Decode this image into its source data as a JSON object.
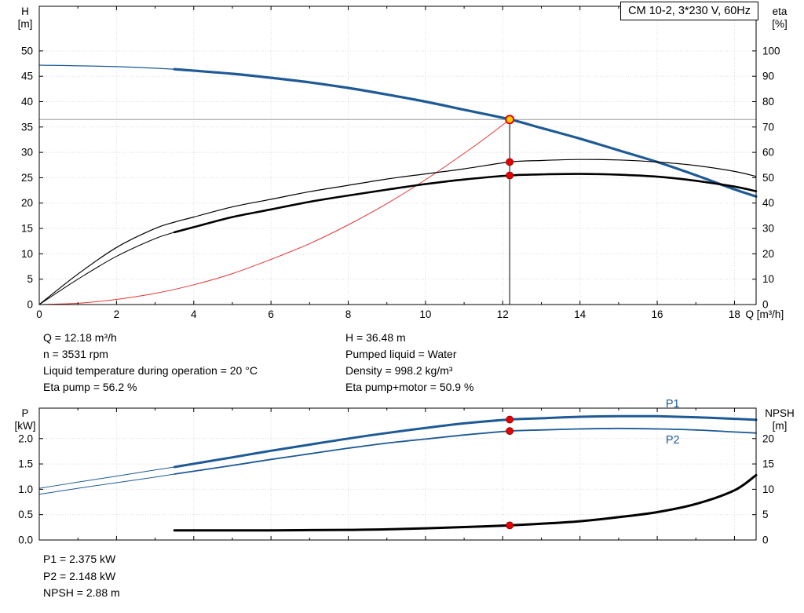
{
  "title_box": "CM 10-2, 3*230 V, 60Hz",
  "operating_point": {
    "left": [
      "Q = 12.18 m³/h",
      "n = 3531 rpm",
      "Liquid temperature during operation = 20 °C",
      "Eta pump = 56.2 %"
    ],
    "right": [
      "H = 36.48 m",
      "Pumped liquid = Water",
      "Density = 998.2 kg/m³",
      "Eta pump+motor = 50.9 %"
    ]
  },
  "power_results": [
    "P1 = 2.375 kW",
    "P2 = 2.148 kW",
    "NPSH = 2.88 m"
  ],
  "colors": {
    "blue": "#1e5a96",
    "black": "#000000",
    "red": "#e53535",
    "dot_red": "#e60000",
    "duty_fill": "#ffd200",
    "grid": "#dcdcdc",
    "ref_gray": "#9c9c9c"
  },
  "chart_data": [
    {
      "type": "line",
      "name": "qh-eta-chart",
      "x_axis": {
        "label": "Q [m³/h]",
        "min": 0,
        "max": 18.56,
        "ticks": [
          0,
          2,
          4,
          6,
          8,
          10,
          12,
          14,
          16,
          18
        ],
        "minor_step": 1,
        "show_labels": true
      },
      "y_left": {
        "name": "H",
        "unit": "[m]",
        "min": 0,
        "max": 58.8,
        "ticks": [
          0,
          5,
          10,
          15,
          20,
          25,
          30,
          35,
          40,
          45,
          50
        ],
        "decimals": 0
      },
      "y_right": {
        "name": "eta",
        "unit": "[%]",
        "min": 0,
        "max": 117.6,
        "ticks": [
          0,
          10,
          20,
          30,
          40,
          50,
          60,
          70,
          80,
          90,
          100
        ],
        "decimals": 0
      },
      "series": [
        {
          "name": "head-curve",
          "axis": "left",
          "color": "blue",
          "thin": 1.2,
          "thick": 3.2,
          "split_q": 3.5,
          "points": [
            [
              0,
              47.2
            ],
            [
              2,
              46.9
            ],
            [
              3.5,
              46.4
            ],
            [
              5,
              45.5
            ],
            [
              6,
              44.7
            ],
            [
              7,
              43.8
            ],
            [
              8,
              42.7
            ],
            [
              9,
              41.4
            ],
            [
              10,
              40.0
            ],
            [
              11,
              38.4
            ],
            [
              12.18,
              36.5
            ],
            [
              13,
              34.8
            ],
            [
              14,
              32.7
            ],
            [
              15,
              30.4
            ],
            [
              16,
              28.1
            ],
            [
              17,
              25.5
            ],
            [
              18,
              22.7
            ],
            [
              18.56,
              21.3
            ]
          ]
        },
        {
          "name": "system-curve",
          "axis": "left",
          "color": "red",
          "thin": 1,
          "thick": 1,
          "split_q": null,
          "points": [
            [
              0,
              0
            ],
            [
              1,
              0.25
            ],
            [
              2,
              1.0
            ],
            [
              3,
              2.2
            ],
            [
              4,
              3.9
            ],
            [
              5,
              6.1
            ],
            [
              6,
              8.9
            ],
            [
              7,
              12.0
            ],
            [
              8,
              15.7
            ],
            [
              9,
              19.9
            ],
            [
              10,
              24.6
            ],
            [
              11,
              29.8
            ],
            [
              11.6,
              33.1
            ],
            [
              12.18,
              36.48
            ]
          ]
        },
        {
          "name": "eta-pump-curve",
          "axis": "right",
          "color": "black",
          "thin": 1.2,
          "thick": 1.2,
          "split_q": null,
          "points": [
            [
              0,
              0
            ],
            [
              1,
              12
            ],
            [
              2,
              22.5
            ],
            [
              3,
              30
            ],
            [
              3.5,
              32.5
            ],
            [
              4,
              34.5
            ],
            [
              5,
              38.5
            ],
            [
              6,
              41.5
            ],
            [
              7,
              44.5
            ],
            [
              8,
              47
            ],
            [
              9,
              49.5
            ],
            [
              10,
              51.5
            ],
            [
              11,
              53.5
            ],
            [
              12.18,
              56.2
            ],
            [
              13,
              56.8
            ],
            [
              14,
              57.2
            ],
            [
              15,
              57.0
            ],
            [
              16,
              56.2
            ],
            [
              17,
              54.8
            ],
            [
              18,
              52.5
            ],
            [
              18.56,
              50.5
            ]
          ]
        },
        {
          "name": "eta-pump-motor-curve",
          "axis": "right",
          "color": "black",
          "thin": 1,
          "thick": 2.6,
          "split_q": 3.5,
          "points": [
            [
              0,
              0
            ],
            [
              1,
              10
            ],
            [
              2,
              19
            ],
            [
              3,
              26
            ],
            [
              3.5,
              28.5
            ],
            [
              4,
              30.5
            ],
            [
              5,
              34.5
            ],
            [
              6,
              37.5
            ],
            [
              7,
              40.5
            ],
            [
              8,
              43
            ],
            [
              9,
              45.3
            ],
            [
              10,
              47.5
            ],
            [
              11,
              49.3
            ],
            [
              12.18,
              50.9
            ],
            [
              13,
              51.3
            ],
            [
              14,
              51.5
            ],
            [
              15,
              51.2
            ],
            [
              16,
              50.4
            ],
            [
              17,
              48.8
            ],
            [
              18,
              46.5
            ],
            [
              18.56,
              44.7
            ]
          ]
        }
      ],
      "reference_lines": [
        {
          "type": "h",
          "axis": "left",
          "value": 36.48,
          "color": "ref_gray",
          "width": 1
        },
        {
          "type": "v",
          "axis": "left",
          "q": 12.18,
          "from_value": 36.48,
          "color": "black",
          "width": 1
        }
      ],
      "markers": [
        {
          "style": "duty",
          "q": 12.18,
          "axis": "left",
          "value": 36.48
        },
        {
          "style": "dot",
          "q": 12.18,
          "axis": "right",
          "value": 56.2
        },
        {
          "style": "dot",
          "q": 12.18,
          "axis": "right",
          "value": 50.9
        }
      ],
      "series_labels": []
    },
    {
      "type": "line",
      "name": "power-npsh-chart",
      "x_axis": {
        "label": "",
        "min": 0,
        "max": 18.56,
        "ticks": [
          0,
          2,
          4,
          6,
          8,
          10,
          12,
          14,
          16,
          18
        ],
        "minor_step": 1,
        "show_labels": false
      },
      "y_left": {
        "name": "P",
        "unit": "[kW]",
        "min": 0,
        "max": 2.6,
        "ticks": [
          0.0,
          0.5,
          1.0,
          1.5,
          2.0
        ],
        "decimals": 1
      },
      "y_right": {
        "name": "NPSH",
        "unit": "[m]",
        "min": 0,
        "max": 26,
        "ticks": [
          0,
          5,
          10,
          15,
          20
        ],
        "decimals": 0
      },
      "series": [
        {
          "name": "p1-curve",
          "axis": "left",
          "color": "blue",
          "thin": 1,
          "thick": 3,
          "split_q": 3.5,
          "points": [
            [
              0,
              1.02
            ],
            [
              1,
              1.14
            ],
            [
              2,
              1.26
            ],
            [
              3,
              1.38
            ],
            [
              3.5,
              1.44
            ],
            [
              5,
              1.63
            ],
            [
              6,
              1.76
            ],
            [
              7,
              1.88
            ],
            [
              8,
              2.0
            ],
            [
              9,
              2.11
            ],
            [
              10,
              2.21
            ],
            [
              11,
              2.3
            ],
            [
              12.18,
              2.375
            ],
            [
              13,
              2.4
            ],
            [
              14,
              2.43
            ],
            [
              15,
              2.44
            ],
            [
              16,
              2.44
            ],
            [
              17,
              2.42
            ],
            [
              18,
              2.39
            ],
            [
              18.56,
              2.37
            ]
          ]
        },
        {
          "name": "p2-curve",
          "axis": "left",
          "color": "blue",
          "thin": 1,
          "thick": 1.8,
          "split_q": 3.5,
          "points": [
            [
              0,
              0.9
            ],
            [
              1,
              1.02
            ],
            [
              2,
              1.13
            ],
            [
              3,
              1.24
            ],
            [
              3.5,
              1.3
            ],
            [
              5,
              1.47
            ],
            [
              6,
              1.59
            ],
            [
              7,
              1.7
            ],
            [
              8,
              1.81
            ],
            [
              9,
              1.91
            ],
            [
              10,
              1.99
            ],
            [
              11,
              2.07
            ],
            [
              12.18,
              2.148
            ],
            [
              13,
              2.17
            ],
            [
              14,
              2.19
            ],
            [
              15,
              2.2
            ],
            [
              16,
              2.19
            ],
            [
              17,
              2.17
            ],
            [
              18,
              2.13
            ],
            [
              18.56,
              2.11
            ]
          ]
        },
        {
          "name": "npsh-curve",
          "axis": "right",
          "color": "black",
          "thin": 3,
          "thick": 3,
          "split_q": null,
          "points": [
            [
              3.5,
              1.9
            ],
            [
              5,
              1.9
            ],
            [
              6,
              1.9
            ],
            [
              7,
              1.95
            ],
            [
              8,
              2.0
            ],
            [
              9,
              2.1
            ],
            [
              10,
              2.3
            ],
            [
              11,
              2.55
            ],
            [
              12.18,
              2.88
            ],
            [
              13,
              3.2
            ],
            [
              14,
              3.7
            ],
            [
              15,
              4.5
            ],
            [
              16,
              5.5
            ],
            [
              17,
              7.1
            ],
            [
              18,
              9.8
            ],
            [
              18.56,
              12.8
            ]
          ]
        }
      ],
      "reference_lines": [],
      "markers": [
        {
          "style": "dot",
          "q": 12.18,
          "axis": "left",
          "value": 2.375
        },
        {
          "style": "dot",
          "q": 12.18,
          "axis": "left",
          "value": 2.148
        },
        {
          "style": "dot",
          "q": 12.18,
          "axis": "right",
          "value": 2.88
        }
      ],
      "series_labels": [
        {
          "text": "P1",
          "series": "p1-curve",
          "q": 16.4,
          "dy": -12,
          "color": "blue"
        },
        {
          "text": "P2",
          "series": "p2-curve",
          "q": 16.4,
          "dy": 18,
          "color": "blue"
        }
      ]
    }
  ]
}
